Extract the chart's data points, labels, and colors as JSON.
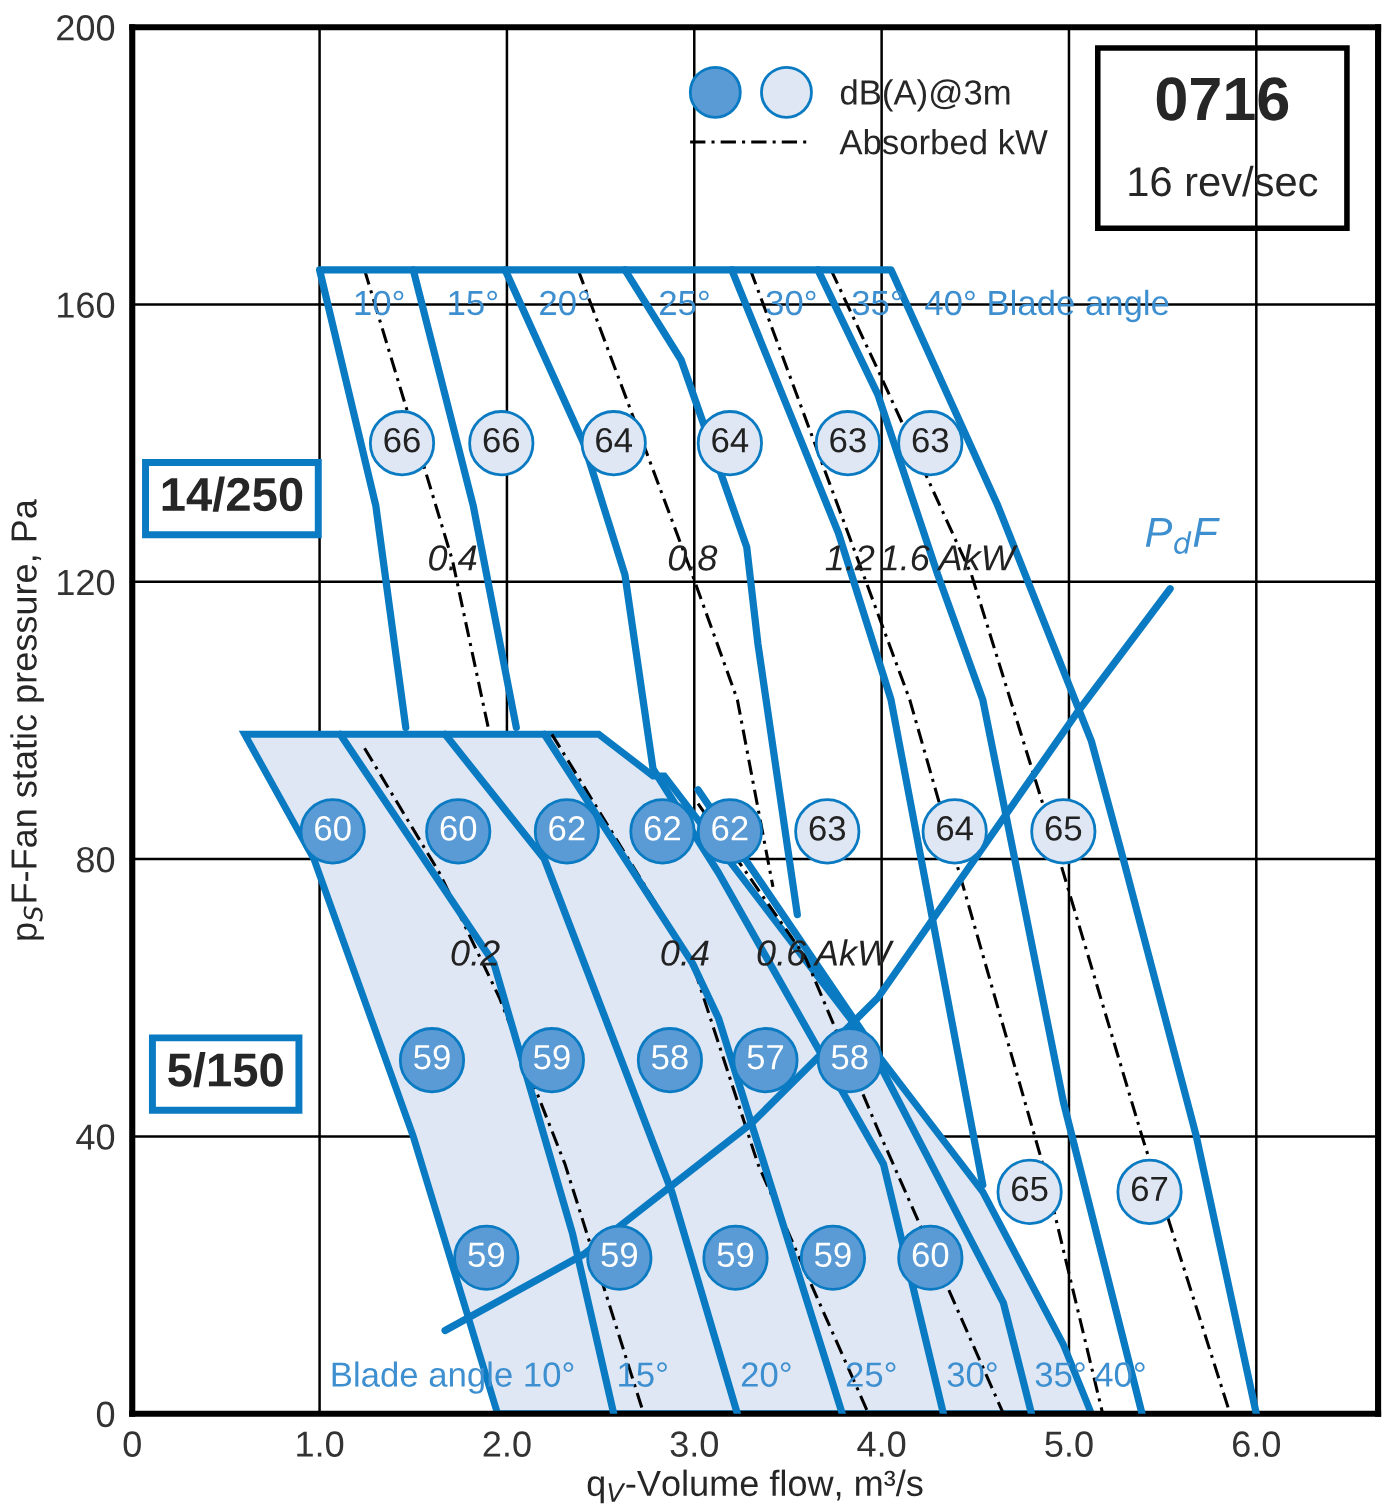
{
  "chart_data": {
    "type": "line",
    "title": "0716",
    "subtitle": "16 rev/sec",
    "xlabel": "q$_{V}$-Volume flow, m³/s",
    "ylabel": "p$_{S}$F-Fan static pressure, Pa",
    "xlim": [
      0,
      6.65
    ],
    "ylim": [
      0,
      200
    ],
    "xticks": [
      0,
      {
        "value": 1,
        "label": "1.0"
      },
      {
        "value": 2,
        "label": "2.0"
      },
      {
        "value": 3,
        "label": "3.0"
      },
      {
        "value": 4,
        "label": "4.0"
      },
      {
        "value": 5,
        "label": "5.0"
      },
      {
        "value": 6,
        "label": "6.0"
      }
    ],
    "yticks": [
      0,
      40,
      80,
      120,
      160,
      200
    ],
    "grid": true,
    "legend": "top right",
    "series": [
      {
        "type": "area",
        "color": "#dfe7f4",
        "x": [
          0.6,
          2.49,
          2.78,
          2.84,
          4.54,
          4.97,
          5.12,
          1.95,
          1.5,
          0.97,
          0.6
        ],
        "values": [
          98,
          98,
          92,
          92,
          32,
          10,
          0,
          0,
          40,
          80,
          98
        ]
      },
      {
        "color": "#0a7bc2",
        "x": [
          1.46,
          1.3,
          1.0,
          4.05,
          4.62,
          5.12,
          5.29,
          5.68,
          6.0
        ],
        "values": [
          99,
          131,
          165,
          165,
          131,
          97,
          80,
          40,
          0
        ]
      },
      {
        "color": "#0a7bc2",
        "x": [
          1.5,
          1.82,
          2.05
        ],
        "values": [
          165,
          131,
          99
        ]
      },
      {
        "color": "#0a7bc2",
        "x": [
          1.99,
          2.41,
          2.63,
          2.78,
          3.13,
          4.01,
          4.33
        ],
        "values": [
          165,
          140,
          121,
          93,
          78,
          36,
          0
        ]
      },
      {
        "color": "#0a7bc2",
        "x": [
          2.63,
          2.93,
          3.28,
          3.34,
          3.55
        ],
        "values": [
          165,
          152,
          125,
          111,
          72
        ]
      },
      {
        "color": "#0a7bc2",
        "x": [
          3.2,
          3.77,
          4.05,
          4.54
        ],
        "values": [
          165,
          127,
          103,
          33
        ]
      },
      {
        "color": "#0a7bc2",
        "x": [
          3.66,
          3.98,
          4.3,
          4.54,
          4.97,
          5.39
        ],
        "values": [
          165,
          147,
          121,
          103,
          45,
          0
        ]
      },
      {
        "color": "#0a7bc2",
        "x": [
          1.11,
          1.93,
          2.35,
          2.57
        ],
        "values": [
          98,
          65,
          26,
          0
        ]
      },
      {
        "color": "#0a7bc2",
        "x": [
          1.67,
          2.2,
          2.88,
          3.23
        ],
        "values": [
          98,
          80,
          32,
          0
        ]
      },
      {
        "color": "#0a7bc2",
        "x": [
          2.2,
          2.99,
          3.13,
          3.79
        ],
        "values": [
          98,
          65,
          57,
          0
        ]
      },
      {
        "color": "#0a7bc2",
        "x": [
          3.02,
          3.9,
          4.65,
          4.8
        ],
        "values": [
          90,
          55,
          16,
          0
        ]
      },
      {
        "color": "#0a7bc2",
        "x": [
          1.67,
          2.41,
          3.31,
          3.98,
          5.04,
          5.54
        ],
        "values": [
          12,
          23,
          42,
          60,
          101,
          119
        ]
      },
      {
        "name": "Absorbed kW",
        "color": "#000000",
        "line_style": "dashdot",
        "x": [
          1.24,
          1.71,
          1.9
        ],
        "values": [
          165,
          123,
          99
        ]
      },
      {
        "color": "#000000",
        "line_style": "dashdot",
        "x": [
          2.38,
          2.99,
          3.23,
          3.42
        ],
        "values": [
          165,
          121,
          103,
          76
        ]
      },
      {
        "color": "#000000",
        "line_style": "dashdot",
        "x": [
          3.3,
          4.15,
          4.86,
          5.18
        ],
        "values": [
          165,
          103,
          36,
          0
        ]
      },
      {
        "color": "#000000",
        "line_style": "dashdot",
        "x": [
          3.73,
          3.99,
          4.48,
          4.86,
          5.39,
          5.86
        ],
        "values": [
          165,
          150,
          121,
          88,
          40,
          0
        ]
      },
      {
        "color": "#000000",
        "line_style": "dashdot",
        "x": [
          1.24,
          1.64,
          1.96,
          2.31,
          2.73
        ],
        "values": [
          96,
          78,
          60,
          36,
          0
        ]
      },
      {
        "color": "#000000",
        "line_style": "dashdot",
        "x": [
          2.24,
          2.99,
          3.34,
          3.93
        ],
        "values": [
          98,
          65,
          36,
          0
        ]
      },
      {
        "color": "#000000",
        "line_style": "dashdot",
        "x": [
          3.02,
          3.59,
          3.98,
          4.65
        ],
        "values": [
          88,
          66,
          41,
          0
        ]
      },
      {
        "type": "scatter",
        "color": "#5b9bd5",
        "marker": "circle",
        "x": [
          1.07,
          1.74,
          2.32,
          2.83,
          3.19,
          1.6,
          2.24,
          2.87,
          3.38,
          3.83,
          1.89,
          2.6,
          3.22,
          3.74,
          4.26
        ],
        "values": [
          84,
          84,
          84,
          84,
          84,
          51,
          51,
          51,
          51,
          51,
          22.5,
          22.5,
          22.5,
          22.5,
          22.5
        ]
      },
      {
        "type": "scatter",
        "name": "dB(A)@3m",
        "color": "#dfe7f4",
        "marker": "circle",
        "x": [
          1.44,
          1.97,
          2.57,
          3.19,
          3.82,
          4.26,
          3.71,
          4.39,
          4.97,
          4.79,
          5.43
        ],
        "values": [
          140,
          140,
          140,
          140,
          140,
          140,
          84,
          84,
          84,
          32,
          32
        ]
      }
    ],
    "annotations": [
      "14/250",
      "5/150",
      {
        "text": "0.4",
        "x": 1.71,
        "y": 123
      },
      {
        "text": "0.8",
        "x": 2.99,
        "y": 123
      },
      {
        "text": "1.2",
        "x": 3.83,
        "y": 123
      },
      {
        "text": "1.6 AkW",
        "x": 4.35,
        "y": 123
      },
      {
        "text": "0.2",
        "x": 1.83,
        "y": 66
      },
      {
        "text": "0.4",
        "x": 2.95,
        "y": 66
      },
      {
        "text": "0.6 AkW",
        "x": 3.69,
        "y": 66
      },
      {
        "text": "10°",
        "x": 1.0,
        "y": 165
      },
      {
        "text": "15°",
        "x": 1.5,
        "y": 165
      },
      {
        "text": "20°",
        "x": 1.99,
        "y": 165
      },
      {
        "text": "25°",
        "x": 2.63,
        "y": 165
      },
      {
        "text": "30°",
        "x": 3.2,
        "y": 165
      },
      {
        "text": "35°",
        "x": 3.66,
        "y": 165
      },
      {
        "text": "40° Blade angle",
        "x": 4.05,
        "y": 165
      },
      {
        "text": "Blade angle 10°",
        "x": 1.95,
        "y": 0
      },
      {
        "text": "15°",
        "x": 2.57,
        "y": 0
      },
      {
        "text": "20°",
        "x": 3.23,
        "y": 0
      },
      {
        "text": "25°",
        "x": 3.79,
        "y": 0
      },
      {
        "text": "30°",
        "x": 4.33,
        "y": 0
      },
      {
        "text": "35°",
        "x": 4.8,
        "y": 0
      },
      {
        "text": "40°",
        "x": 5.12,
        "y": 0
      },
      {
        "text": "P$_{d}$F",
        "x": 5.54,
        "y": 119
      },
      {
        "text": "60",
        "x": 1.07,
        "y": 84
      },
      {
        "text": "60",
        "x": 1.74,
        "y": 84
      },
      {
        "text": "62",
        "x": 2.32,
        "y": 84
      },
      {
        "text": "62",
        "x": 2.83,
        "y": 84
      },
      {
        "text": "62",
        "x": 3.19,
        "y": 84
      },
      {
        "text": "59",
        "x": 1.6,
        "y": 51
      },
      {
        "text": "59",
        "x": 2.24,
        "y": 51
      },
      {
        "text": "58",
        "x": 2.87,
        "y": 51
      },
      {
        "text": "57",
        "x": 3.38,
        "y": 51
      },
      {
        "text": "58",
        "x": 3.83,
        "y": 51
      },
      {
        "text": "59",
        "x": 1.89,
        "y": 22.5
      },
      {
        "text": "59",
        "x": 2.6,
        "y": 22.5
      },
      {
        "text": "59",
        "x": 3.22,
        "y": 22.5
      },
      {
        "text": "59",
        "x": 3.74,
        "y": 22.5
      },
      {
        "text": "60",
        "x": 4.26,
        "y": 22.5
      },
      {
        "text": "66",
        "x": 1.44,
        "y": 140
      },
      {
        "text": "66",
        "x": 1.97,
        "y": 140
      },
      {
        "text": "64",
        "x": 2.57,
        "y": 140
      },
      {
        "text": "64",
        "x": 3.19,
        "y": 140
      },
      {
        "text": "63",
        "x": 3.82,
        "y": 140
      },
      {
        "text": "63",
        "x": 4.26,
        "y": 140
      },
      {
        "text": "63",
        "x": 3.71,
        "y": 84
      },
      {
        "text": "64",
        "x": 4.39,
        "y": 84
      },
      {
        "text": "65",
        "x": 4.97,
        "y": 84
      },
      {
        "text": "65",
        "x": 4.79,
        "y": 32
      },
      {
        "text": "67",
        "x": 5.43,
        "y": 32
      }
    ]
  }
}
